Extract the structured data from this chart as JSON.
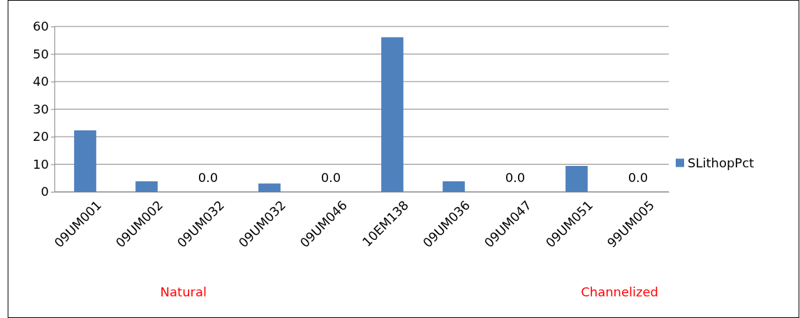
{
  "chart_data": {
    "type": "bar",
    "categories": [
      "09UM001",
      "09UM002",
      "09UM032",
      "09UM032",
      "09UM046",
      "10EM138",
      "09UM036",
      "09UM047",
      "09UM051",
      "99UM005"
    ],
    "series": [
      {
        "name": "SLithopPct",
        "color": "#4f81bd",
        "values": [
          22.3,
          3.8,
          0,
          3.0,
          0,
          56.1,
          3.8,
          0,
          9.4,
          0
        ],
        "value_labels": [
          null,
          null,
          "0.0",
          null,
          "0.0",
          null,
          null,
          "0.0",
          null,
          "0.0"
        ]
      }
    ],
    "ylim": [
      0,
      60
    ],
    "yticks": [
      0,
      10,
      20,
      30,
      40,
      50,
      60
    ],
    "grid": "y",
    "legend": "right",
    "annotations": [
      "Natural",
      "Channelized"
    ]
  }
}
